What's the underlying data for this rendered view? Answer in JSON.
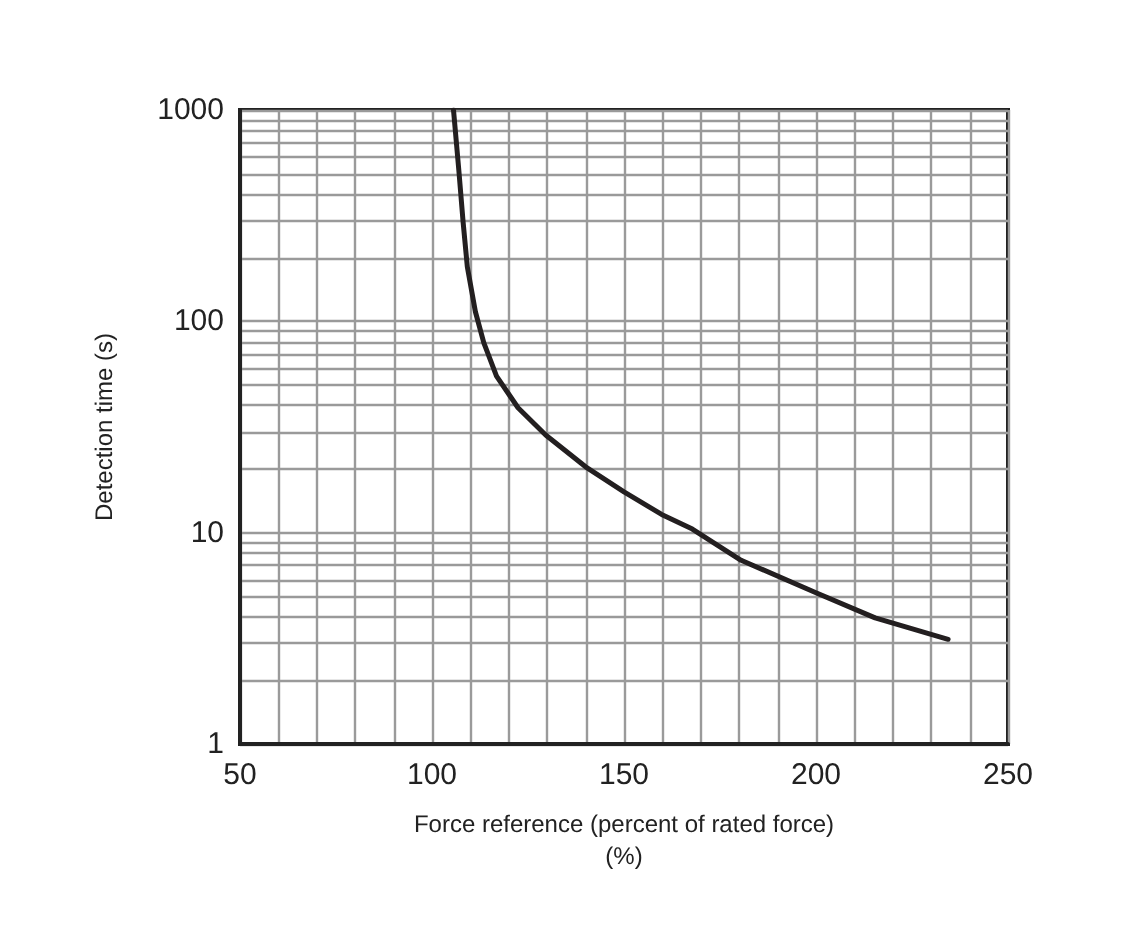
{
  "chart_data": {
    "type": "line",
    "xlabel": "Force reference (percent of rated force)\n(%)",
    "ylabel": "Detection time (s)",
    "series": [
      {
        "color": "#231f20",
        "x": [
          105.6,
          107.0,
          108.1,
          109.2,
          111.3,
          113.5,
          116.8,
          122.4,
          129.6,
          140,
          150,
          159.8,
          167.8,
          180.5,
          200,
          215.4,
          234.4
        ],
        "values": [
          1000,
          515,
          295,
          181,
          111,
          79,
          55,
          39,
          29,
          20.5,
          15.6,
          12.2,
          10.4,
          7.4,
          5.2,
          3.95,
          3.13
        ]
      }
    ],
    "xlim": [
      50,
      250
    ],
    "xticks": [
      50,
      {
        "value": 60,
        "label": null
      },
      {
        "value": 70,
        "label": null
      },
      {
        "value": 80,
        "label": null
      },
      {
        "value": 90,
        "label": null
      },
      100,
      {
        "value": 110,
        "label": null
      },
      {
        "value": 120,
        "label": null
      },
      {
        "value": 130,
        "label": null
      },
      {
        "value": 140,
        "label": null
      },
      150,
      {
        "value": 160,
        "label": null
      },
      {
        "value": 170,
        "label": null
      },
      {
        "value": 180,
        "label": null
      },
      {
        "value": 190,
        "label": null
      },
      200,
      {
        "value": 210,
        "label": null
      },
      {
        "value": 220,
        "label": null
      },
      {
        "value": 230,
        "label": null
      },
      {
        "value": 240,
        "label": null
      },
      250
    ],
    "ylim": [
      1,
      1000
    ],
    "yticks": [
      1,
      {
        "value": 2,
        "label": null
      },
      {
        "value": 3,
        "label": null
      },
      {
        "value": 4,
        "label": null
      },
      {
        "value": 5,
        "label": null
      },
      {
        "value": 6,
        "label": null
      },
      {
        "value": 7,
        "label": null
      },
      {
        "value": 8,
        "label": null
      },
      {
        "value": 9,
        "label": null
      },
      10,
      {
        "value": 20,
        "label": null
      },
      {
        "value": 30,
        "label": null
      },
      {
        "value": 40,
        "label": null
      },
      {
        "value": 50,
        "label": null
      },
      {
        "value": 60,
        "label": null
      },
      {
        "value": 70,
        "label": null
      },
      {
        "value": 80,
        "label": null
      },
      {
        "value": 90,
        "label": null
      },
      100,
      {
        "value": 200,
        "label": null
      },
      {
        "value": 300,
        "label": null
      },
      {
        "value": 400,
        "label": null
      },
      {
        "value": 500,
        "label": null
      },
      {
        "value": 600,
        "label": null
      },
      {
        "value": 700,
        "label": null
      },
      {
        "value": 800,
        "label": null
      },
      {
        "value": 900,
        "label": null
      },
      1000
    ],
    "log": "y",
    "grid": true,
    "marker": "none",
    "line_style": "solid"
  }
}
